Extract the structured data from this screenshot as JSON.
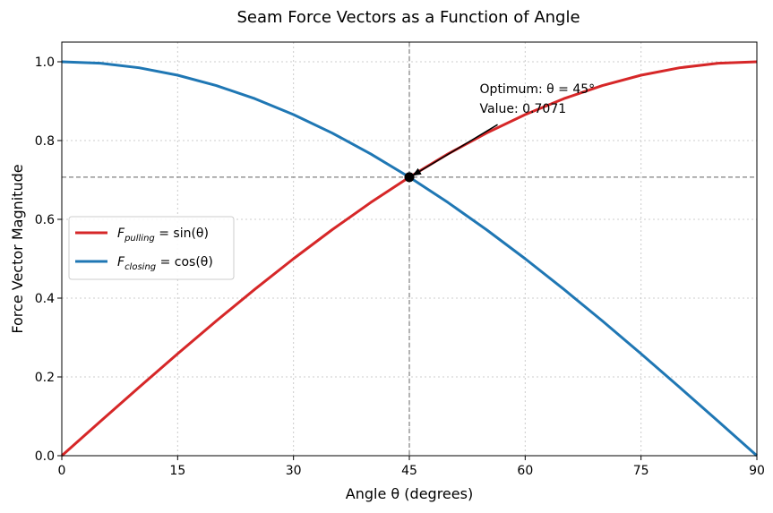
{
  "chart_data": {
    "type": "line",
    "title": "Seam Force Vectors as a Function of Angle",
    "xlabel": "Angle θ (degrees)",
    "ylabel": "Force Vector Magnitude",
    "xlim": [
      0,
      90
    ],
    "ylim": [
      0,
      1.05
    ],
    "xticks": [
      0,
      15,
      30,
      45,
      60,
      75,
      90
    ],
    "yticks": [
      0.0,
      0.2,
      0.4,
      0.6,
      0.8,
      1.0
    ],
    "xtick_labels": [
      "0",
      "15",
      "30",
      "45",
      "60",
      "75",
      "90"
    ],
    "ytick_labels": [
      "0.0",
      "0.2",
      "0.4",
      "0.6",
      "0.8",
      "1.0"
    ],
    "grid": true,
    "legend_position": "center-left",
    "series": [
      {
        "name": "F_pulling = sin(θ)",
        "legend_main": "F",
        "legend_sub": "pulling",
        "legend_rest": " = sin(θ)",
        "color": "#d62728",
        "x": [
          0,
          5,
          10,
          15,
          20,
          25,
          30,
          35,
          40,
          45,
          50,
          55,
          60,
          65,
          70,
          75,
          80,
          85,
          90
        ],
        "y": [
          0.0,
          0.0872,
          0.1736,
          0.2588,
          0.342,
          0.4226,
          0.5,
          0.5736,
          0.6428,
          0.7071,
          0.766,
          0.8192,
          0.866,
          0.9063,
          0.9397,
          0.9659,
          0.9848,
          0.9962,
          1.0
        ]
      },
      {
        "name": "F_closing = cos(θ)",
        "legend_main": "F",
        "legend_sub": "closing",
        "legend_rest": " = cos(θ)",
        "color": "#1f77b4",
        "x": [
          0,
          5,
          10,
          15,
          20,
          25,
          30,
          35,
          40,
          45,
          50,
          55,
          60,
          65,
          70,
          75,
          80,
          85,
          90
        ],
        "y": [
          1.0,
          0.9962,
          0.9848,
          0.9659,
          0.9397,
          0.9063,
          0.866,
          0.8192,
          0.766,
          0.7071,
          0.6428,
          0.5736,
          0.5,
          0.4226,
          0.342,
          0.2588,
          0.1736,
          0.0872,
          0.0
        ]
      }
    ],
    "reference_lines": {
      "x": 45,
      "y": 0.7071,
      "color": "#808080"
    },
    "marker": {
      "x": 45,
      "y": 0.7071,
      "color": "#000000"
    },
    "annotation": {
      "line1": "Optimum: θ = 45°",
      "line2": "Value: 0.7071",
      "point_x": 45,
      "point_y": 0.7071,
      "text_x": 55.5,
      "text_y": 0.87
    }
  }
}
